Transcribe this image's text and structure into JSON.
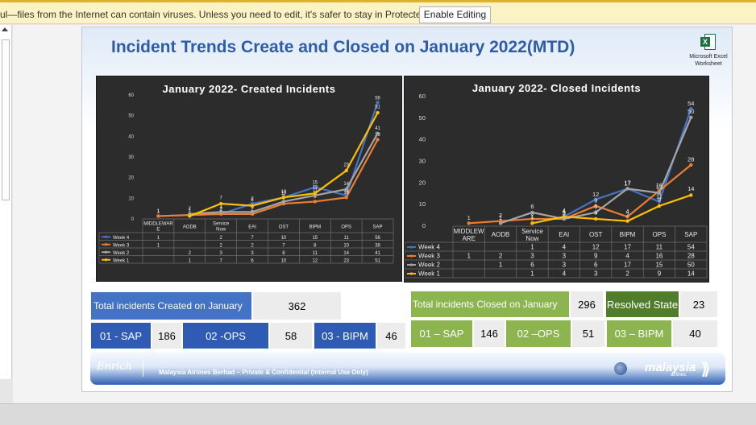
{
  "protected_view": {
    "message": "ul—files from the Internet can contain viruses. Unless you need to edit, it's safer to stay in Protected View.",
    "button_label": "Enable Editing"
  },
  "slide": {
    "title": "Incident Trends Create and Closed on January 2022(MTD)",
    "embedded_object": {
      "icon": "excel-icon",
      "label_line1": "Microsoft Excel",
      "label_line2": "Worksheet"
    }
  },
  "colors": {
    "week4": "#4472c4",
    "week3": "#ed7d31",
    "week2": "#a5a5a5",
    "week1": "#ffc000",
    "chart_bg": "#2c2c2c"
  },
  "chart_data": [
    {
      "type": "line",
      "title": "January 2022- Created Incidents",
      "categories": [
        "MIDDLEWARE",
        "AODB",
        "Service Now",
        "EAI",
        "OST",
        "BIPM",
        "OPS",
        "SAP"
      ],
      "category_labels": [
        "MIDDLEWAR E",
        "AODB",
        "Service Now",
        "EAI",
        "OST",
        "BIPM",
        "OPS",
        "SAP"
      ],
      "ylim": [
        0,
        60
      ],
      "yticks": [
        "0",
        "10",
        "20",
        "30",
        "40",
        "50",
        "60"
      ],
      "grid": false,
      "legend": "data table below plot",
      "series": [
        {
          "name": "Week 4",
          "values": [
            1,
            null,
            2,
            7,
            10,
            15,
            11,
            56
          ],
          "labels": [
            "1",
            "",
            "2",
            "7",
            "10",
            "15",
            "11",
            "56"
          ]
        },
        {
          "name": "Week 3",
          "values": [
            1,
            null,
            2,
            2,
            7,
            8,
            10,
            38
          ],
          "labels": [
            "1",
            "",
            "2",
            "2",
            "7",
            "8",
            "10",
            "38"
          ]
        },
        {
          "name": "Week 2",
          "values": [
            null,
            2,
            3,
            3,
            8,
            11,
            14,
            41
          ],
          "labels": [
            "",
            "2",
            "3",
            "3",
            "8",
            "11",
            "14",
            "41"
          ]
        },
        {
          "name": "Week 1",
          "values": [
            null,
            1,
            7,
            6,
            10,
            12,
            23,
            51
          ],
          "labels": [
            "",
            "1",
            "7",
            "6",
            "10",
            "12",
            "23",
            "51"
          ]
        }
      ]
    },
    {
      "type": "line",
      "title": "January 2022- Closed Incidents",
      "categories": [
        "MIDDLEWARE",
        "AODB",
        "Service Now",
        "EAI",
        "OST",
        "BIPM",
        "OPS",
        "SAP"
      ],
      "category_labels": [
        "MIDDLEW ARE",
        "AODB",
        "Service Now",
        "EAI",
        "OST",
        "BIPM",
        "OPS",
        "SAP"
      ],
      "ylim": [
        0,
        60
      ],
      "yticks": [
        "0",
        "10",
        "20",
        "30",
        "40",
        "50",
        "60"
      ],
      "grid": false,
      "legend": "data table below plot",
      "series": [
        {
          "name": "Week 4",
          "values": [
            null,
            null,
            1,
            4,
            12,
            17,
            11,
            54
          ],
          "labels": [
            "",
            "",
            "1",
            "4",
            "12",
            "17",
            "11",
            "54"
          ]
        },
        {
          "name": "Week 3",
          "values": [
            1,
            2,
            3,
            3,
            9,
            4,
            16,
            28
          ],
          "labels": [
            "1",
            "2",
            "3",
            "3",
            "9",
            "4",
            "16",
            "28"
          ]
        },
        {
          "name": "Week 2",
          "values": [
            null,
            1,
            6,
            3,
            6,
            17,
            15,
            50
          ],
          "labels": [
            "",
            "1",
            "6",
            "3",
            "6",
            "17",
            "15",
            "50"
          ]
        },
        {
          "name": "Week 1",
          "values": [
            null,
            null,
            1,
            4,
            3,
            2,
            9,
            14
          ],
          "labels": [
            "",
            "",
            "1",
            "4",
            "3",
            "2",
            "9",
            "14"
          ]
        }
      ]
    }
  ],
  "summary": {
    "created_label": "Total incidents Created on January",
    "created_value": "362",
    "closed_label": "Total incidents Closed on January",
    "closed_value": "296",
    "resolved_label": "Resolved State",
    "resolved_value": "23",
    "created_breakdown": [
      {
        "label": "01 - SAP",
        "value": "186"
      },
      {
        "label": "02 -OPS",
        "value": "58"
      },
      {
        "label": "03 - BIPM",
        "value": "46"
      }
    ],
    "closed_breakdown": [
      {
        "label": "01 – SAP",
        "value": "146"
      },
      {
        "label": "02 –OPS",
        "value": "51"
      },
      {
        "label": "03 – BIPM",
        "value": "40"
      }
    ]
  },
  "footer": {
    "logo_text": "Enrich",
    "confidential": "Malaysia Airlines Berhad – Private & Confidential (Internal Use Only)",
    "brand": "malaysia",
    "brand_sub": "airlines"
  }
}
